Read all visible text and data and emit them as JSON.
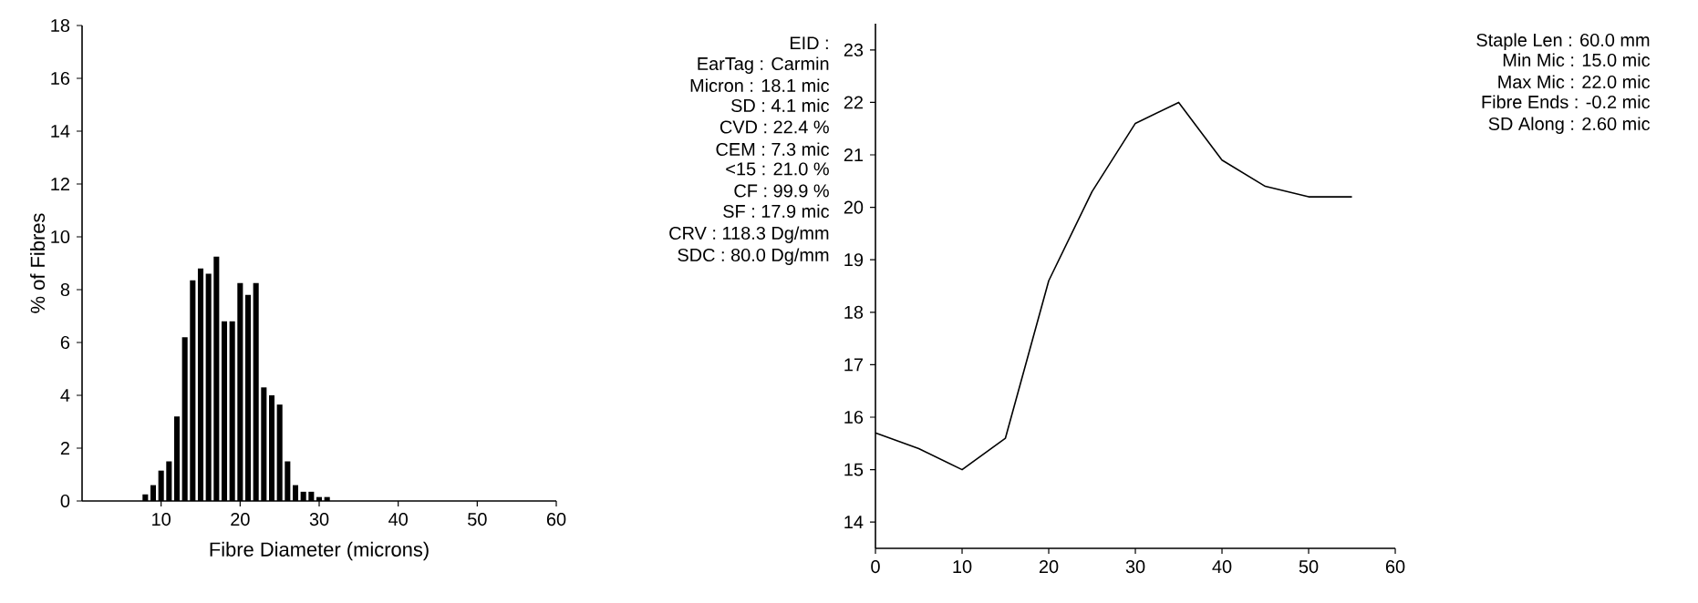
{
  "chart_data": [
    {
      "type": "histogram",
      "xlabel": "Fibre Diameter (microns)",
      "ylabel": "% of Fibres",
      "bins": [
        7.5,
        8.5,
        9.5,
        10.5,
        11.5,
        12.5,
        13.5,
        14.5,
        15.5,
        16.5,
        17.5,
        18.5,
        19.5,
        20.5,
        21.5,
        22.5,
        23.5,
        24.5,
        25.5,
        26.5,
        27.5,
        28.5,
        29.5,
        30.5,
        31.5
      ],
      "values": [
        0.25,
        0.6,
        1.15,
        1.5,
        3.2,
        6.2,
        8.35,
        8.8,
        8.6,
        9.25,
        6.8,
        6.8,
        8.25,
        7.8,
        8.25,
        4.3,
        4.0,
        3.65,
        1.5,
        0.6,
        0.35,
        0.35,
        0.15,
        0.15
      ],
      "color": "#000000",
      "xlim": [
        0,
        60
      ],
      "xticks": [
        10,
        20,
        30,
        40,
        50,
        60
      ],
      "ylim": [
        0,
        18
      ],
      "yticks": [
        0,
        2,
        4,
        6,
        8,
        10,
        12,
        14,
        16,
        18
      ],
      "grid": false
    },
    {
      "type": "other",
      "annotations": [
        "EID :",
        "EarTag : Carmin",
        "Micron :  18.1 mic",
        "SD :  4.1 mic",
        "CVD :  22.4 %",
        "CEM :  7.3 mic",
        "<15 :  21.0 %",
        "CF :  99.9 %",
        "SF :  17.9 mic",
        "CRV :  118.3 Dg/mm",
        "SDC :  80.0 Dg/mm"
      ]
    },
    {
      "type": "line",
      "x": [
        0,
        5,
        10,
        15,
        20,
        25,
        30,
        35,
        40,
        45,
        50,
        55
      ],
      "values": [
        15.7,
        15.4,
        15.0,
        15.6,
        18.6,
        20.3,
        21.6,
        22.0,
        20.9,
        20.4,
        20.2,
        20.2
      ],
      "color": "#000000",
      "xlim": [
        0,
        60
      ],
      "xticks": [
        0,
        10,
        20,
        30,
        40,
        50,
        60
      ],
      "ylim": [
        13.5,
        23.5
      ],
      "yticks": [
        14,
        15,
        16,
        17,
        18,
        19,
        20,
        21,
        22,
        23
      ],
      "grid": false,
      "marker": "none",
      "line_style": "solid"
    },
    {
      "type": "other",
      "annotations": [
        "Staple Len :  60.0 mm",
        "Min Mic :  15.0 mic",
        "Max Mic :  22.0 mic",
        "Fibre Ends :  -0.2 mic",
        "SD Along :  2.60 mic"
      ]
    }
  ]
}
